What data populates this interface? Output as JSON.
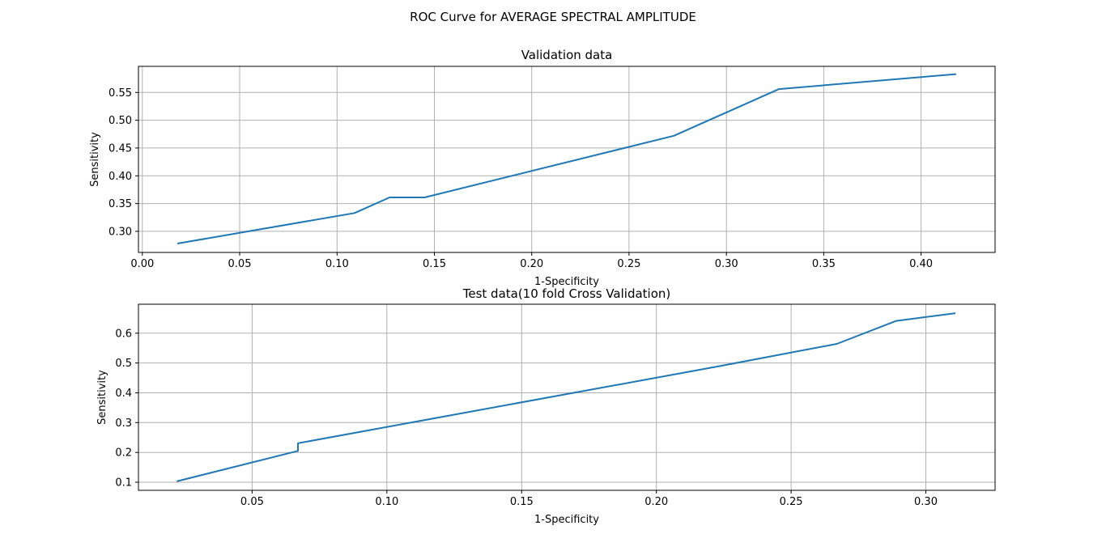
{
  "figure": {
    "suptitle": "ROC Curve for AVERAGE SPECTRAL AMPLITUDE"
  },
  "chart_data": [
    {
      "type": "line",
      "title": "Validation data",
      "xlabel": "1-Specificity",
      "ylabel": "Sensitivity",
      "xlim": [
        -0.002,
        0.438
      ],
      "ylim": [
        0.262,
        0.597
      ],
      "xticks": [
        0.0,
        0.05,
        0.1,
        0.15,
        0.2,
        0.25,
        0.3,
        0.35,
        0.4
      ],
      "xtick_labels": [
        "0.00",
        "0.05",
        "0.10",
        "0.15",
        "0.20",
        "0.25",
        "0.30",
        "0.35",
        "0.40"
      ],
      "yticks": [
        0.3,
        0.35,
        0.4,
        0.45,
        0.5,
        0.55
      ],
      "ytick_labels": [
        "0.30",
        "0.35",
        "0.40",
        "0.45",
        "0.50",
        "0.55"
      ],
      "grid": true,
      "color": "#1f77b4",
      "series": [
        {
          "x": [
            0.018,
            0.109,
            0.127,
            0.145,
            0.273,
            0.327,
            0.418
          ],
          "y": [
            0.278,
            0.333,
            0.361,
            0.361,
            0.472,
            0.556,
            0.583
          ]
        }
      ]
    },
    {
      "type": "line",
      "title": "Test data(10 fold Cross Validation)",
      "xlabel": "1-Specificity",
      "ylabel": "Sensitivity",
      "xlim": [
        0.0078,
        0.3257
      ],
      "ylim": [
        0.073,
        0.697
      ],
      "xticks": [
        0.05,
        0.1,
        0.15,
        0.2,
        0.25,
        0.3
      ],
      "xtick_labels": [
        "0.05",
        "0.10",
        "0.15",
        "0.20",
        "0.25",
        "0.30"
      ],
      "yticks": [
        0.1,
        0.2,
        0.3,
        0.4,
        0.5,
        0.6
      ],
      "ytick_labels": [
        "0.1",
        "0.2",
        "0.3",
        "0.4",
        "0.5",
        "0.6"
      ],
      "grid": true,
      "color": "#1f77b4",
      "series": [
        {
          "x": [
            0.022,
            0.067,
            0.067,
            0.222,
            0.267,
            0.289,
            0.311
          ],
          "y": [
            0.103,
            0.205,
            0.231,
            0.487,
            0.564,
            0.641,
            0.667
          ]
        }
      ]
    }
  ]
}
